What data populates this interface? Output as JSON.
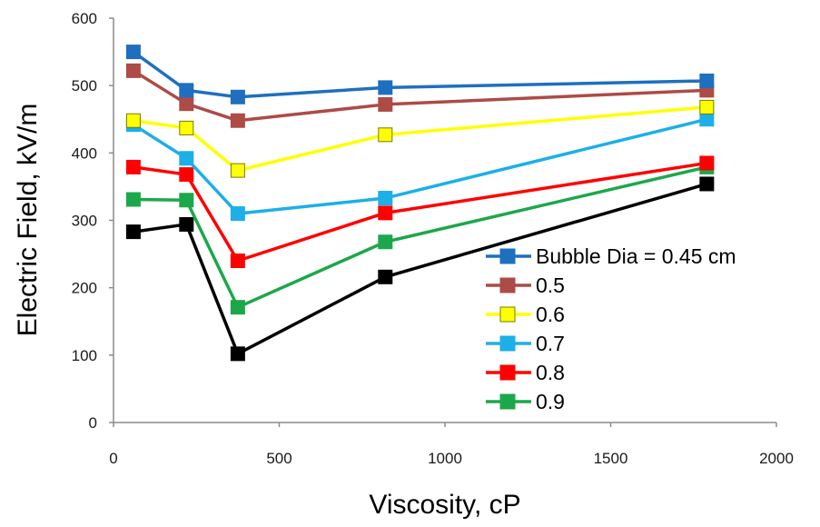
{
  "chart_data": {
    "type": "line",
    "title": "",
    "xlabel": "Viscosity, cP",
    "ylabel": "Electric Field, kV/m",
    "xlim": [
      0,
      2000
    ],
    "ylim": [
      0,
      600
    ],
    "xticks": [
      0,
      500,
      1000,
      1500,
      2000
    ],
    "yticks": [
      0,
      100,
      200,
      300,
      400,
      500,
      600
    ],
    "x": [
      60,
      220,
      375,
      820,
      1790
    ],
    "grid": false,
    "legend_position": "right",
    "series": [
      {
        "name": "Bubble Dia = 0.45 cm",
        "color": "#1F6FBF",
        "values": [
          550,
          493,
          483,
          497,
          507
        ]
      },
      {
        "name": "0.5",
        "color": "#AD4B47",
        "values": [
          522,
          473,
          448,
          472,
          493
        ]
      },
      {
        "name": "0.6",
        "color": "#FFFF00",
        "values": [
          448,
          437,
          374,
          427,
          468
        ]
      },
      {
        "name": "0.7",
        "color": "#1CAFE8",
        "values": [
          442,
          392,
          310,
          333,
          450
        ]
      },
      {
        "name": "0.8",
        "color": "#FF0000",
        "values": [
          379,
          368,
          240,
          311,
          385
        ]
      },
      {
        "name": "0.9",
        "color": "#1CA84A",
        "values": [
          331,
          330,
          171,
          268,
          379
        ]
      },
      {
        "name": "",
        "color": "#000000",
        "values": [
          283,
          294,
          102,
          216,
          354
        ]
      }
    ]
  }
}
